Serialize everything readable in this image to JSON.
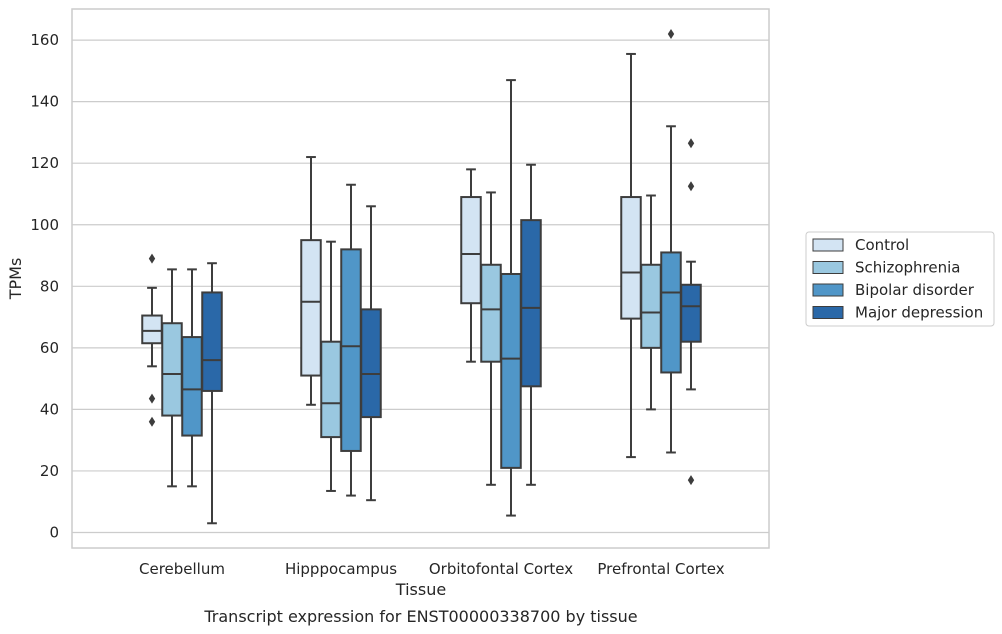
{
  "chart_data": {
    "type": "box",
    "title": "Transcript expression for ENST00000338700 by tissue",
    "xlabel": "Tissue",
    "ylabel": "TPMs",
    "ylim": [
      -5,
      170
    ],
    "yticks": [
      0,
      20,
      40,
      60,
      80,
      100,
      120,
      140,
      160
    ],
    "categories": [
      "Cerebellum",
      "Hipppocampus",
      "Orbitofontal Cortex",
      "Prefrontal Cortex"
    ],
    "grid": "horizontal",
    "legend_position": "right",
    "series": [
      {
        "name": "Control",
        "color": "#d3e4f3",
        "boxes": [
          {
            "whislo": 54,
            "q1": 61.5,
            "med": 65.5,
            "q3": 70.5,
            "whishi": 79.5,
            "fliers": [
              89,
              43.5,
              36
            ]
          },
          {
            "whislo": 41.5,
            "q1": 51,
            "med": 75,
            "q3": 95,
            "whishi": 122,
            "fliers": []
          },
          {
            "whislo": 55.5,
            "q1": 74.5,
            "med": 90.5,
            "q3": 109,
            "whishi": 118,
            "fliers": []
          },
          {
            "whislo": 24.5,
            "q1": 69.5,
            "med": 84.5,
            "q3": 109,
            "whishi": 155.5,
            "fliers": []
          }
        ]
      },
      {
        "name": "Schizophrenia",
        "color": "#9ac8e0",
        "boxes": [
          {
            "whislo": 15,
            "q1": 38,
            "med": 51.5,
            "q3": 68,
            "whishi": 85.5,
            "fliers": []
          },
          {
            "whislo": 13.5,
            "q1": 31,
            "med": 42,
            "q3": 62,
            "whishi": 94.5,
            "fliers": []
          },
          {
            "whislo": 15.5,
            "q1": 55.5,
            "med": 72.5,
            "q3": 87,
            "whishi": 110.5,
            "fliers": []
          },
          {
            "whislo": 40,
            "q1": 60,
            "med": 71.5,
            "q3": 87,
            "whishi": 109.5,
            "fliers": []
          }
        ]
      },
      {
        "name": "Bipolar disorder",
        "color": "#5096c8",
        "boxes": [
          {
            "whislo": 15,
            "q1": 31.5,
            "med": 46.5,
            "q3": 63.5,
            "whishi": 85.5,
            "fliers": []
          },
          {
            "whislo": 12,
            "q1": 26.5,
            "med": 60.5,
            "q3": 92,
            "whishi": 113,
            "fliers": []
          },
          {
            "whislo": 5.5,
            "q1": 21,
            "med": 56.5,
            "q3": 84,
            "whishi": 147,
            "fliers": []
          },
          {
            "whislo": 26,
            "q1": 52,
            "med": 78,
            "q3": 91,
            "whishi": 132,
            "fliers": [
              162
            ]
          }
        ]
      },
      {
        "name": "Major depression",
        "color": "#2a68a8",
        "boxes": [
          {
            "whislo": 3,
            "q1": 46,
            "med": 56,
            "q3": 78,
            "whishi": 87.5,
            "fliers": []
          },
          {
            "whislo": 10.5,
            "q1": 37.5,
            "med": 51.5,
            "q3": 72.5,
            "whishi": 106,
            "fliers": []
          },
          {
            "whislo": 15.5,
            "q1": 47.5,
            "med": 73,
            "q3": 101.5,
            "whishi": 119.5,
            "fliers": []
          },
          {
            "whislo": 46.5,
            "q1": 62,
            "med": 73.5,
            "q3": 80.5,
            "whishi": 88,
            "fliers": [
              126.5,
              112.5,
              17
            ]
          }
        ]
      }
    ]
  }
}
